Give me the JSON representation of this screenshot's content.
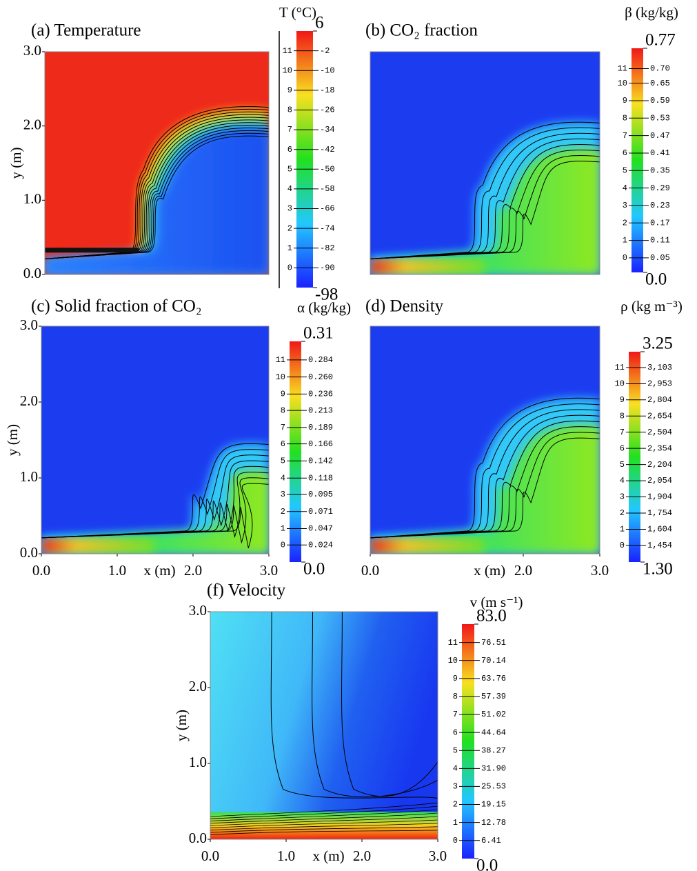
{
  "chart_data": [
    {
      "type": "contour",
      "title": "(a) Temperature",
      "colorbar_title": "T (°C)",
      "ylabel": "y (m)",
      "ylim": [
        0,
        3
      ],
      "yticks": [
        {
          "value": 0,
          "label": "0.0"
        },
        {
          "value": 1,
          "label": "1.0"
        },
        {
          "value": 2,
          "label": "2.0"
        },
        {
          "value": 3,
          "label": "3.0"
        }
      ],
      "clim": [
        -98,
        6
      ],
      "levels": [
        0,
        1,
        2,
        3,
        4,
        5,
        6,
        7,
        8,
        9,
        10,
        11
      ],
      "level_values": [
        -90,
        -82,
        -74,
        -66,
        -58,
        -50,
        -42,
        -34,
        -26,
        -18,
        -10,
        -2
      ]
    },
    {
      "type": "contour",
      "title": "(b) CO₂ fraction",
      "colorbar_title": "β (kg/kg)",
      "clim": [
        {
          "value": 0,
          "label": "0.0"
        },
        0.77
      ],
      "levels": [
        0,
        1,
        2,
        3,
        4,
        5,
        6,
        7,
        8,
        9,
        10,
        11
      ],
      "level_values": [
        0.05,
        0.11,
        0.17,
        0.23,
        0.29,
        0.35,
        0.41,
        0.47,
        0.53,
        0.59,
        0.65,
        {
          "value": 0.7,
          "label": "0.70"
        }
      ]
    },
    {
      "type": "contour",
      "title": "(c) Solid fraction of CO₂",
      "colorbar_title": "α (kg/kg)",
      "ylabel": "y (m)",
      "xlabel": "x (m)",
      "xlim": [
        0,
        3
      ],
      "xticks": [
        {
          "value": 0,
          "label": "0.0"
        },
        {
          "value": 1,
          "label": "1.0"
        },
        {
          "value": 2,
          "label": "2.0"
        },
        {
          "value": 3,
          "label": "3.0"
        }
      ],
      "ylim": [
        0,
        3
      ],
      "yticks": [
        {
          "value": 0,
          "label": "0.0"
        },
        {
          "value": 1,
          "label": "1.0"
        },
        {
          "value": 2,
          "label": "2.0"
        },
        {
          "value": 3,
          "label": "3.0"
        }
      ],
      "clim": [
        {
          "value": 0,
          "label": "0.0"
        },
        0.31
      ],
      "levels": [
        0,
        1,
        2,
        3,
        4,
        5,
        6,
        7,
        8,
        9,
        10,
        11
      ],
      "level_values": [
        0.024,
        0.047,
        0.071,
        0.095,
        0.118,
        0.142,
        0.166,
        0.189,
        0.213,
        0.236,
        {
          "value": 0.26,
          "label": "0.260"
        },
        0.284
      ]
    },
    {
      "type": "contour",
      "title": "(d) Density",
      "colorbar_title": "ρ (kg m⁻³)",
      "xlabel": "x (m)",
      "xlim": [
        0,
        3
      ],
      "xticks": [
        {
          "value": 0,
          "label": "0.0"
        },
        {
          "value": 2,
          "label": "2.0"
        },
        {
          "value": 3,
          "label": "3.0"
        }
      ],
      "clim": [
        {
          "value": 1.3,
          "label": "1.30"
        },
        3.25
      ],
      "levels": [
        0,
        1,
        2,
        3,
        4,
        5,
        6,
        7,
        8,
        9,
        10,
        11
      ],
      "level_values": [
        {
          "value": 1.454,
          "label": "1,454"
        },
        {
          "value": 1.604,
          "label": "1,604"
        },
        {
          "value": 1.754,
          "label": "1,754"
        },
        {
          "value": 1.904,
          "label": "1,904"
        },
        {
          "value": 2.054,
          "label": "2,054"
        },
        {
          "value": 2.204,
          "label": "2,204"
        },
        {
          "value": 2.354,
          "label": "2,354"
        },
        {
          "value": 2.504,
          "label": "2,504"
        },
        {
          "value": 2.654,
          "label": "2,654"
        },
        {
          "value": 2.804,
          "label": "2,804"
        },
        {
          "value": 2.953,
          "label": "2,953"
        },
        {
          "value": 3.103,
          "label": "3,103"
        }
      ]
    },
    {
      "type": "contour",
      "title": "(f) Velocity",
      "colorbar_title": "v (m s⁻¹)",
      "ylabel": "y (m)",
      "xlabel": "x (m)",
      "xlim": [
        0,
        3
      ],
      "xticks": [
        {
          "value": 0,
          "label": "0.0"
        },
        {
          "value": 1,
          "label": "1.0"
        },
        {
          "value": 2,
          "label": "2.0"
        },
        {
          "value": 3,
          "label": "3.0"
        }
      ],
      "ylim": [
        0,
        3
      ],
      "yticks": [
        {
          "value": 0,
          "label": "0.0"
        },
        {
          "value": 1,
          "label": "1.0"
        },
        {
          "value": 2,
          "label": "2.0"
        },
        {
          "value": 3,
          "label": "3.0"
        }
      ],
      "clim": [
        {
          "value": 0,
          "label": "0.0"
        },
        {
          "value": 83,
          "label": "83.0"
        }
      ],
      "levels": [
        0,
        1,
        2,
        3,
        4,
        5,
        6,
        7,
        8,
        9,
        10,
        11
      ],
      "level_values": [
        6.41,
        12.78,
        19.15,
        25.53,
        {
          "value": 31.9,
          "label": "31.90"
        },
        38.27,
        44.64,
        51.02,
        57.39,
        63.76,
        70.14,
        76.51
      ]
    }
  ]
}
